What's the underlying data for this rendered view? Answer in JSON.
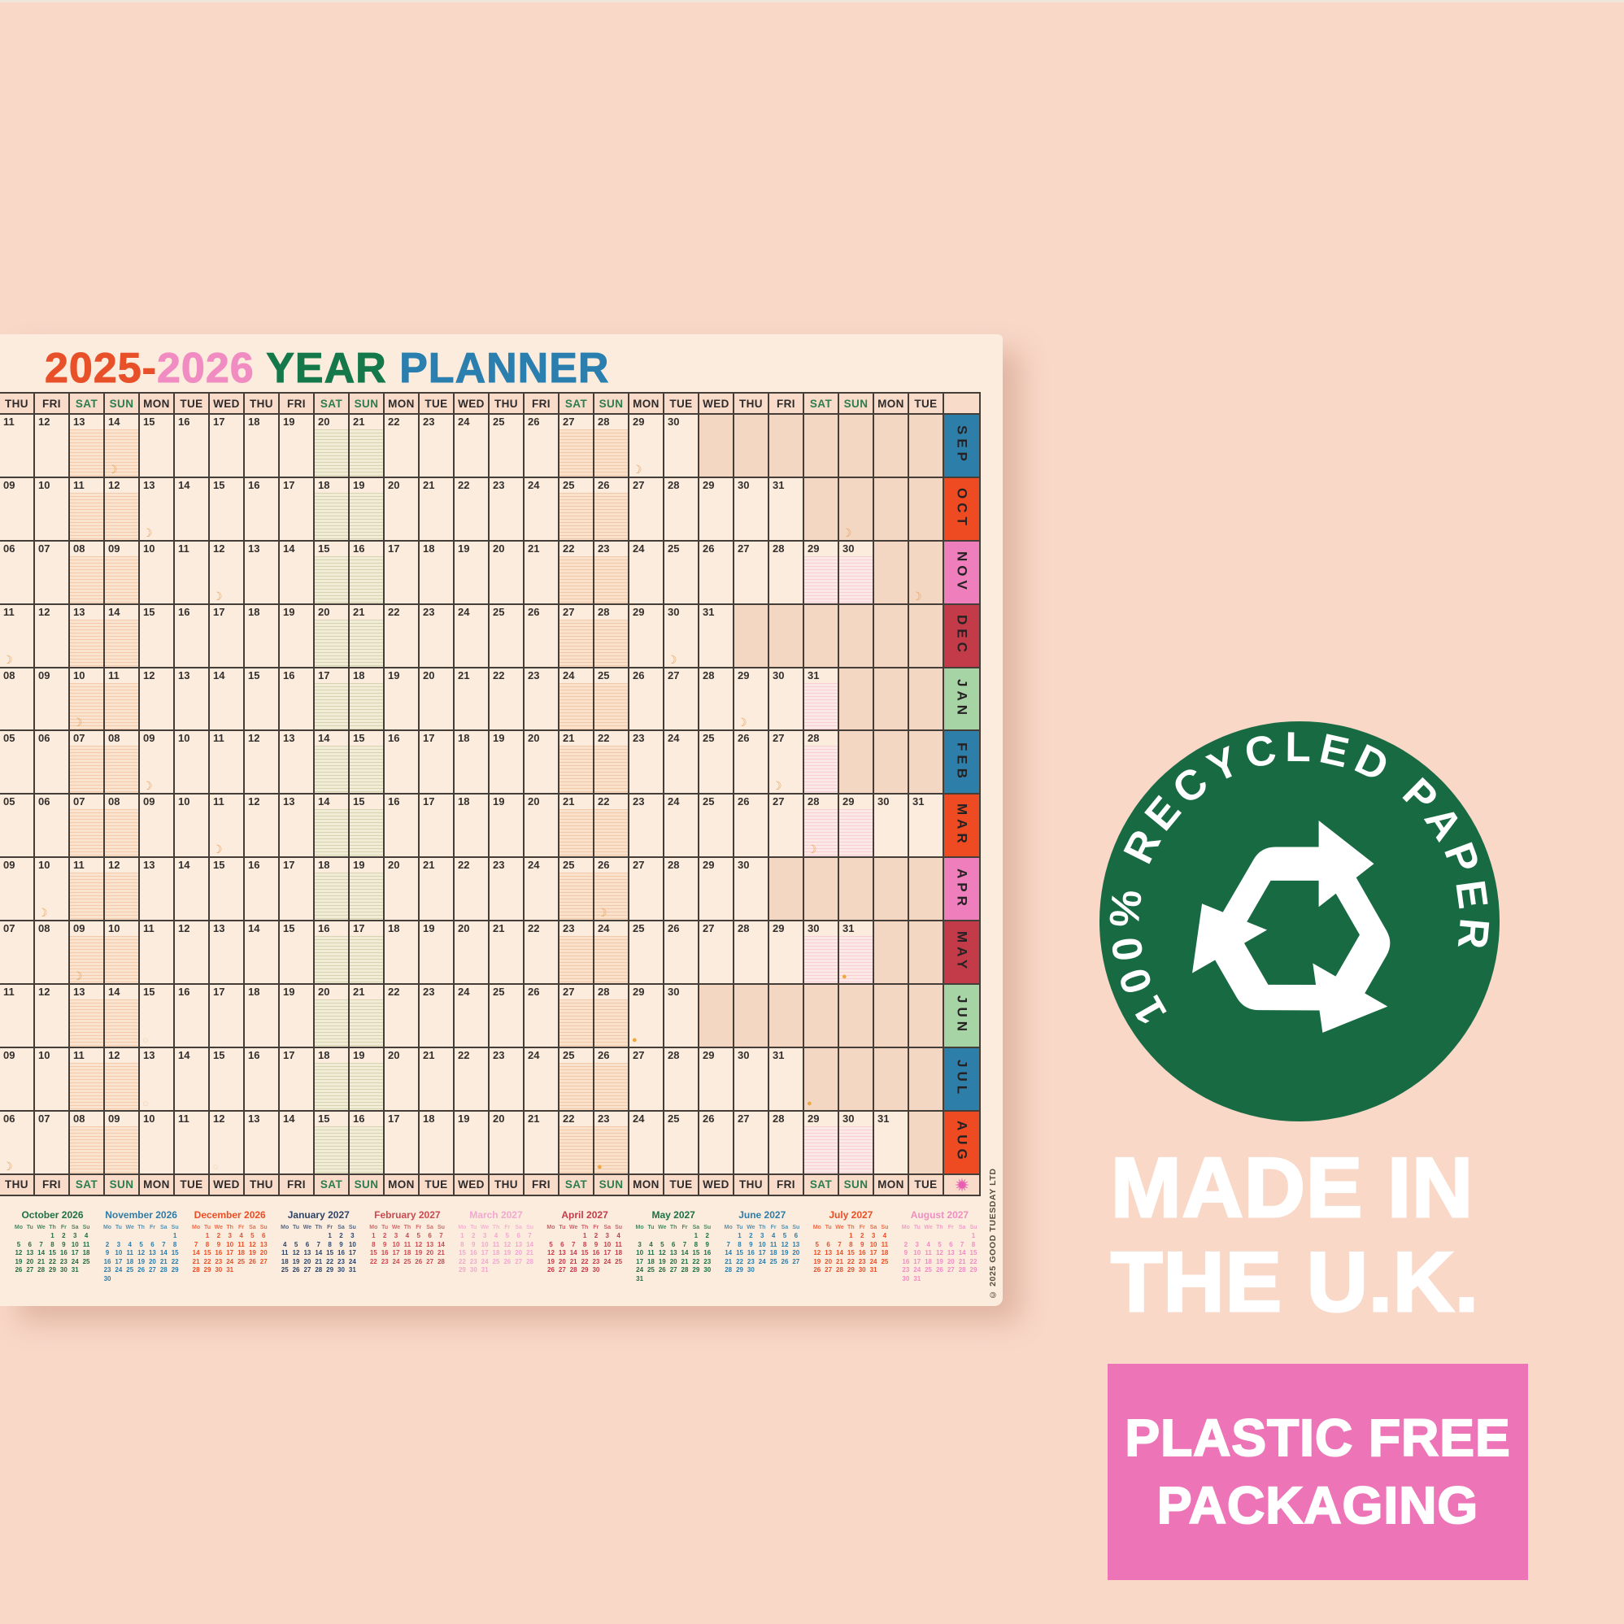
{
  "page": {
    "background": "#f9d8c8"
  },
  "planner": {
    "title": [
      {
        "text": "2025-",
        "color": "#e8502a"
      },
      {
        "text": "2026",
        "color": "#f18cc3"
      },
      {
        "text": " YEAR",
        "color": "#15784a"
      },
      {
        "text": " PLANNER",
        "color": "#2b7fae"
      }
    ],
    "day_headers": [
      "THU",
      "FRI",
      "SAT",
      "SUN",
      "MON",
      "TUE",
      "WED",
      "THU",
      "FRI",
      "SAT",
      "SUN",
      "MON",
      "TUE",
      "WED",
      "THU",
      "FRI",
      "SAT",
      "SUN",
      "MON",
      "TUE",
      "WED",
      "THU",
      "FRI",
      "SAT",
      "SUN",
      "MON",
      "TUE"
    ],
    "weekend_header_days": [
      "SAT",
      "SUN"
    ],
    "months": [
      {
        "tab": "SEP",
        "color": "#2d7fa9",
        "start": 11,
        "end": 30
      },
      {
        "tab": "OCT",
        "color": "#ee4b23",
        "start": 9,
        "end": 31
      },
      {
        "tab": "NOV",
        "color": "#ef7ebc",
        "start": 6,
        "end": 30
      },
      {
        "tab": "DEC",
        "color": "#c33a49",
        "start": 11,
        "end": 31
      },
      {
        "tab": "JAN",
        "color": "#a6d4a4",
        "start": 8,
        "end": 31
      },
      {
        "tab": "FEB",
        "color": "#2d7fa9",
        "start": 5,
        "end": 28
      },
      {
        "tab": "MAR",
        "color": "#ee4b23",
        "start": 5,
        "end": 31
      },
      {
        "tab": "APR",
        "color": "#ef7ebc",
        "start": 9,
        "end": 30
      },
      {
        "tab": "MAY",
        "color": "#c33a49",
        "start": 7,
        "end": 31
      },
      {
        "tab": "JUN",
        "color": "#a6d4a4",
        "start": 11,
        "end": 30
      },
      {
        "tab": "JUL",
        "color": "#2d7fa9",
        "start": 9,
        "end": 31
      },
      {
        "tab": "AUG",
        "color": "#ee4b23",
        "start": 6,
        "end": 31
      }
    ],
    "moons": [
      {
        "row": 0,
        "col": 4,
        "t": "c"
      },
      {
        "row": 0,
        "col": 19,
        "t": "c"
      },
      {
        "row": 1,
        "col": 5,
        "t": "c"
      },
      {
        "row": 1,
        "col": 25,
        "t": "c"
      },
      {
        "row": 2,
        "col": 7,
        "t": "c"
      },
      {
        "row": 2,
        "col": 27,
        "t": "c"
      },
      {
        "row": 3,
        "col": 1,
        "t": "c"
      },
      {
        "row": 3,
        "col": 20,
        "t": "c"
      },
      {
        "row": 4,
        "col": 3,
        "t": "c"
      },
      {
        "row": 4,
        "col": 22,
        "t": "c"
      },
      {
        "row": 5,
        "col": 5,
        "t": "c"
      },
      {
        "row": 5,
        "col": 23,
        "t": "c"
      },
      {
        "row": 6,
        "col": 7,
        "t": "c"
      },
      {
        "row": 6,
        "col": 24,
        "t": "c"
      },
      {
        "row": 7,
        "col": 2,
        "t": "c"
      },
      {
        "row": 7,
        "col": 18,
        "t": "c"
      },
      {
        "row": 8,
        "col": 3,
        "t": "c"
      },
      {
        "row": 8,
        "col": 25,
        "t": "d"
      },
      {
        "row": 9,
        "col": 5,
        "t": "r"
      },
      {
        "row": 9,
        "col": 19,
        "t": "d"
      },
      {
        "row": 10,
        "col": 5,
        "t": "r"
      },
      {
        "row": 10,
        "col": 24,
        "t": "d"
      },
      {
        "row": 11,
        "col": 1,
        "t": "c"
      },
      {
        "row": 11,
        "col": 7,
        "t": "r"
      },
      {
        "row": 11,
        "col": 18,
        "t": "d"
      }
    ],
    "moon_glyphs": {
      "c": "☽",
      "d": "●",
      "r": "○"
    },
    "footer_sun_color": "#e85fb1",
    "copyright": "© 2025 GOOD TUESDAY LTD",
    "minical_day_header": [
      "Mo",
      "Tu",
      "We",
      "Th",
      "Fr",
      "Sa",
      "Su"
    ],
    "minicals": [
      {
        "title": "October 2026",
        "color": "#1d6f47",
        "weeks": [
          [
            null,
            null,
            null,
            1,
            2,
            3,
            4
          ],
          [
            5,
            6,
            7,
            8,
            9,
            10,
            11
          ],
          [
            12,
            13,
            14,
            15,
            16,
            17,
            18
          ],
          [
            19,
            20,
            21,
            22,
            23,
            24,
            25
          ],
          [
            26,
            27,
            28,
            29,
            30,
            31,
            null
          ]
        ]
      },
      {
        "title": "November 2026",
        "color": "#2e7ca8",
        "weeks": [
          [
            null,
            null,
            null,
            null,
            null,
            null,
            1
          ],
          [
            2,
            3,
            4,
            5,
            6,
            7,
            8
          ],
          [
            9,
            10,
            11,
            12,
            13,
            14,
            15
          ],
          [
            16,
            17,
            18,
            19,
            20,
            21,
            22
          ],
          [
            23,
            24,
            25,
            26,
            27,
            28,
            29
          ],
          [
            30,
            null,
            null,
            null,
            null,
            null,
            null
          ]
        ]
      },
      {
        "title": "December 2026",
        "color": "#ed4d24",
        "weeks": [
          [
            null,
            1,
            2,
            3,
            4,
            5,
            6
          ],
          [
            7,
            8,
            9,
            10,
            11,
            12,
            13
          ],
          [
            14,
            15,
            16,
            17,
            18,
            19,
            20
          ],
          [
            21,
            22,
            23,
            24,
            25,
            26,
            27
          ],
          [
            28,
            29,
            30,
            31,
            null,
            null,
            null
          ]
        ]
      },
      {
        "title": "January 2027",
        "color": "#2c4468",
        "weeks": [
          [
            null,
            null,
            null,
            null,
            1,
            2,
            3
          ],
          [
            4,
            5,
            6,
            7,
            8,
            9,
            10
          ],
          [
            11,
            12,
            13,
            14,
            15,
            16,
            17
          ],
          [
            18,
            19,
            20,
            21,
            22,
            23,
            24
          ],
          [
            25,
            26,
            27,
            28,
            29,
            30,
            31
          ]
        ]
      },
      {
        "title": "February 2027",
        "color": "#cb4950",
        "weeks": [
          [
            1,
            2,
            3,
            4,
            5,
            6,
            7
          ],
          [
            8,
            9,
            10,
            11,
            12,
            13,
            14
          ],
          [
            15,
            16,
            17,
            18,
            19,
            20,
            21
          ],
          [
            22,
            23,
            24,
            25,
            26,
            27,
            28
          ]
        ]
      },
      {
        "title": "March 2027",
        "color": "#f2a8d0",
        "weeks": [
          [
            1,
            2,
            3,
            4,
            5,
            6,
            7
          ],
          [
            8,
            9,
            10,
            11,
            12,
            13,
            14
          ],
          [
            15,
            16,
            17,
            18,
            19,
            20,
            21
          ],
          [
            22,
            23,
            24,
            25,
            26,
            27,
            28
          ],
          [
            29,
            30,
            31,
            null,
            null,
            null,
            null
          ]
        ]
      },
      {
        "title": "April 2027",
        "color": "#c33b49",
        "weeks": [
          [
            null,
            null,
            null,
            1,
            2,
            3,
            4
          ],
          [
            5,
            6,
            7,
            8,
            9,
            10,
            11
          ],
          [
            12,
            13,
            14,
            15,
            16,
            17,
            18
          ],
          [
            19,
            20,
            21,
            22,
            23,
            24,
            25
          ],
          [
            26,
            27,
            28,
            29,
            30,
            null,
            null
          ]
        ]
      },
      {
        "title": "May 2027",
        "color": "#1d6f47",
        "weeks": [
          [
            null,
            null,
            null,
            null,
            null,
            1,
            2
          ],
          [
            3,
            4,
            5,
            6,
            7,
            8,
            9
          ],
          [
            10,
            11,
            12,
            13,
            14,
            15,
            16
          ],
          [
            17,
            18,
            19,
            20,
            21,
            22,
            23
          ],
          [
            24,
            25,
            26,
            27,
            28,
            29,
            30
          ],
          [
            31,
            null,
            null,
            null,
            null,
            null,
            null
          ]
        ]
      },
      {
        "title": "June 2027",
        "color": "#2e7ca8",
        "weeks": [
          [
            null,
            1,
            2,
            3,
            4,
            5,
            6
          ],
          [
            7,
            8,
            9,
            10,
            11,
            12,
            13
          ],
          [
            14,
            15,
            16,
            17,
            18,
            19,
            20
          ],
          [
            21,
            22,
            23,
            24,
            25,
            26,
            27
          ],
          [
            28,
            29,
            30,
            null,
            null,
            null,
            null
          ]
        ]
      },
      {
        "title": "July 2027",
        "color": "#ed4d24",
        "weeks": [
          [
            null,
            null,
            null,
            1,
            2,
            3,
            4
          ],
          [
            5,
            6,
            7,
            8,
            9,
            10,
            11
          ],
          [
            12,
            13,
            14,
            15,
            16,
            17,
            18
          ],
          [
            19,
            20,
            21,
            22,
            23,
            24,
            25
          ],
          [
            26,
            27,
            28,
            29,
            30,
            31,
            null
          ]
        ]
      },
      {
        "title": "August 2027",
        "color": "#ef8ec2",
        "weeks": [
          [
            null,
            null,
            null,
            null,
            null,
            null,
            1
          ],
          [
            2,
            3,
            4,
            5,
            6,
            7,
            8
          ],
          [
            9,
            10,
            11,
            12,
            13,
            14,
            15
          ],
          [
            16,
            17,
            18,
            19,
            20,
            21,
            22
          ],
          [
            23,
            24,
            25,
            26,
            27,
            28,
            29
          ],
          [
            30,
            31,
            null,
            null,
            null,
            null,
            null
          ]
        ]
      }
    ]
  },
  "badges": {
    "recycled": {
      "text": "100% RECYCLED PAPER",
      "bg": "#186a43",
      "fg": "#ffffff"
    },
    "made_in": [
      "MADE IN",
      "THE U.K."
    ],
    "packaging": {
      "lines": [
        "PLASTIC FREE",
        "PACKAGING"
      ],
      "bg": "#ec74b7",
      "fg": "#ffffff"
    }
  }
}
